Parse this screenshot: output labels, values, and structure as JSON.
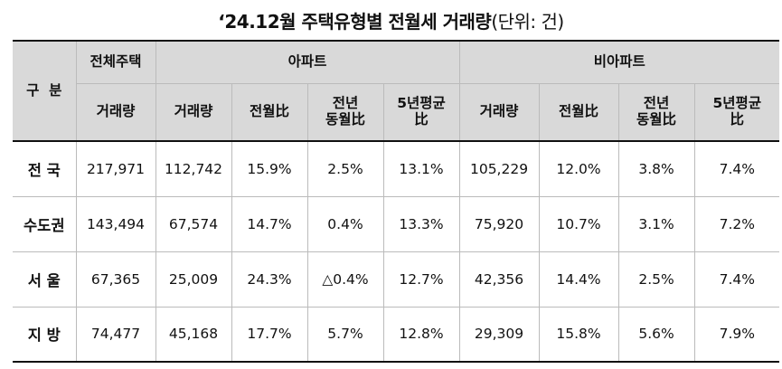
{
  "title": {
    "main": "‘24.12월 주택유형별 전월세 거래량",
    "unit": "(단위: 건)"
  },
  "header": {
    "category": "구  분",
    "total_group": "전체주택",
    "apt_group": "아파트",
    "nonapt_group": "비아파트",
    "total_cols": [
      "거래량"
    ],
    "apt_cols": [
      "거래량",
      "전월比",
      "전년\n동월比",
      "5년평균\n比"
    ],
    "nonapt_cols": [
      "거래량",
      "전월比",
      "전년\n동월比",
      "5년평균\n比"
    ]
  },
  "rows": [
    {
      "label": "전 국",
      "total": "217,971",
      "apt": [
        "112,742",
        "15.9%",
        "2.5%",
        "13.1%"
      ],
      "nonapt": [
        "105,229",
        "12.0%",
        "3.8%",
        "7.4%"
      ]
    },
    {
      "label": "수도권",
      "total": "143,494",
      "apt": [
        "67,574",
        "14.7%",
        "0.4%",
        "13.3%"
      ],
      "nonapt": [
        "75,920",
        "10.7%",
        "3.1%",
        "7.2%"
      ]
    },
    {
      "label": "서 울",
      "total": "67,365",
      "apt": [
        "25,009",
        "24.3%",
        "△0.4%",
        "12.7%"
      ],
      "nonapt": [
        "42,356",
        "14.4%",
        "2.5%",
        "7.4%"
      ]
    },
    {
      "label": "지 방",
      "total": "74,477",
      "apt": [
        "45,168",
        "17.7%",
        "5.7%",
        "12.8%"
      ],
      "nonapt": [
        "29,309",
        "15.8%",
        "5.6%",
        "7.9%"
      ]
    }
  ]
}
